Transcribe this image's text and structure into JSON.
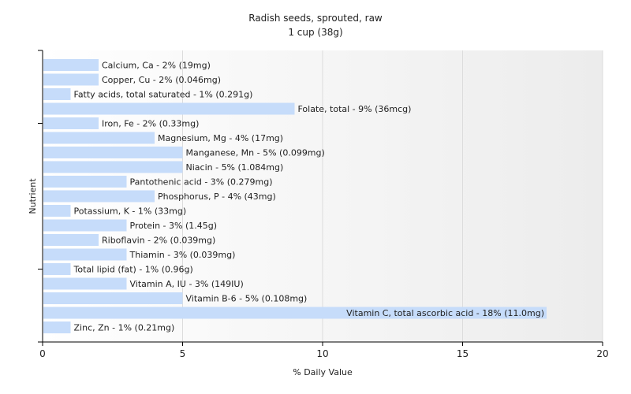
{
  "chart_data": {
    "type": "bar",
    "orientation": "horizontal",
    "title": "Radish seeds, sprouted, raw",
    "subtitle": "1 cup (38g)",
    "xlabel": "% Daily Value",
    "ylabel": "Nutrient",
    "xlim": [
      0,
      20
    ],
    "xticks": [
      0,
      5,
      10,
      15,
      20
    ],
    "grid": true,
    "bar_color": "#c6dcfa",
    "categories": [
      "Calcium, Ca",
      "Copper, Cu",
      "Fatty acids, total saturated",
      "Folate, total",
      "Iron, Fe",
      "Magnesium, Mg",
      "Manganese, Mn",
      "Niacin",
      "Pantothenic acid",
      "Phosphorus, P",
      "Potassium, K",
      "Protein",
      "Riboflavin",
      "Thiamin",
      "Total lipid (fat)",
      "Vitamin A, IU",
      "Vitamin B-6",
      "Vitamin C, total ascorbic acid",
      "Zinc, Zn"
    ],
    "values": [
      2,
      2,
      1,
      9,
      2,
      4,
      5,
      5,
      3,
      4,
      1,
      3,
      2,
      3,
      1,
      3,
      5,
      18,
      1
    ],
    "labels": [
      "Calcium, Ca - 2% (19mg)",
      "Copper, Cu - 2% (0.046mg)",
      "Fatty acids, total saturated - 1% (0.291g)",
      "Folate, total - 9% (36mcg)",
      "Iron, Fe - 2% (0.33mg)",
      "Magnesium, Mg - 4% (17mg)",
      "Manganese, Mn - 5% (0.099mg)",
      "Niacin - 5% (1.084mg)",
      "Pantothenic acid - 3% (0.279mg)",
      "Phosphorus, P - 4% (43mg)",
      "Potassium, K - 1% (33mg)",
      "Protein - 3% (1.45g)",
      "Riboflavin - 2% (0.039mg)",
      "Thiamin - 3% (0.039mg)",
      "Total lipid (fat) - 1% (0.96g)",
      "Vitamin A, IU - 3% (149IU)",
      "Vitamin B-6 - 5% (0.108mg)",
      "Vitamin C, total ascorbic acid - 18% (11.0mg)",
      "Zinc, Zn - 1% (0.21mg)"
    ]
  }
}
